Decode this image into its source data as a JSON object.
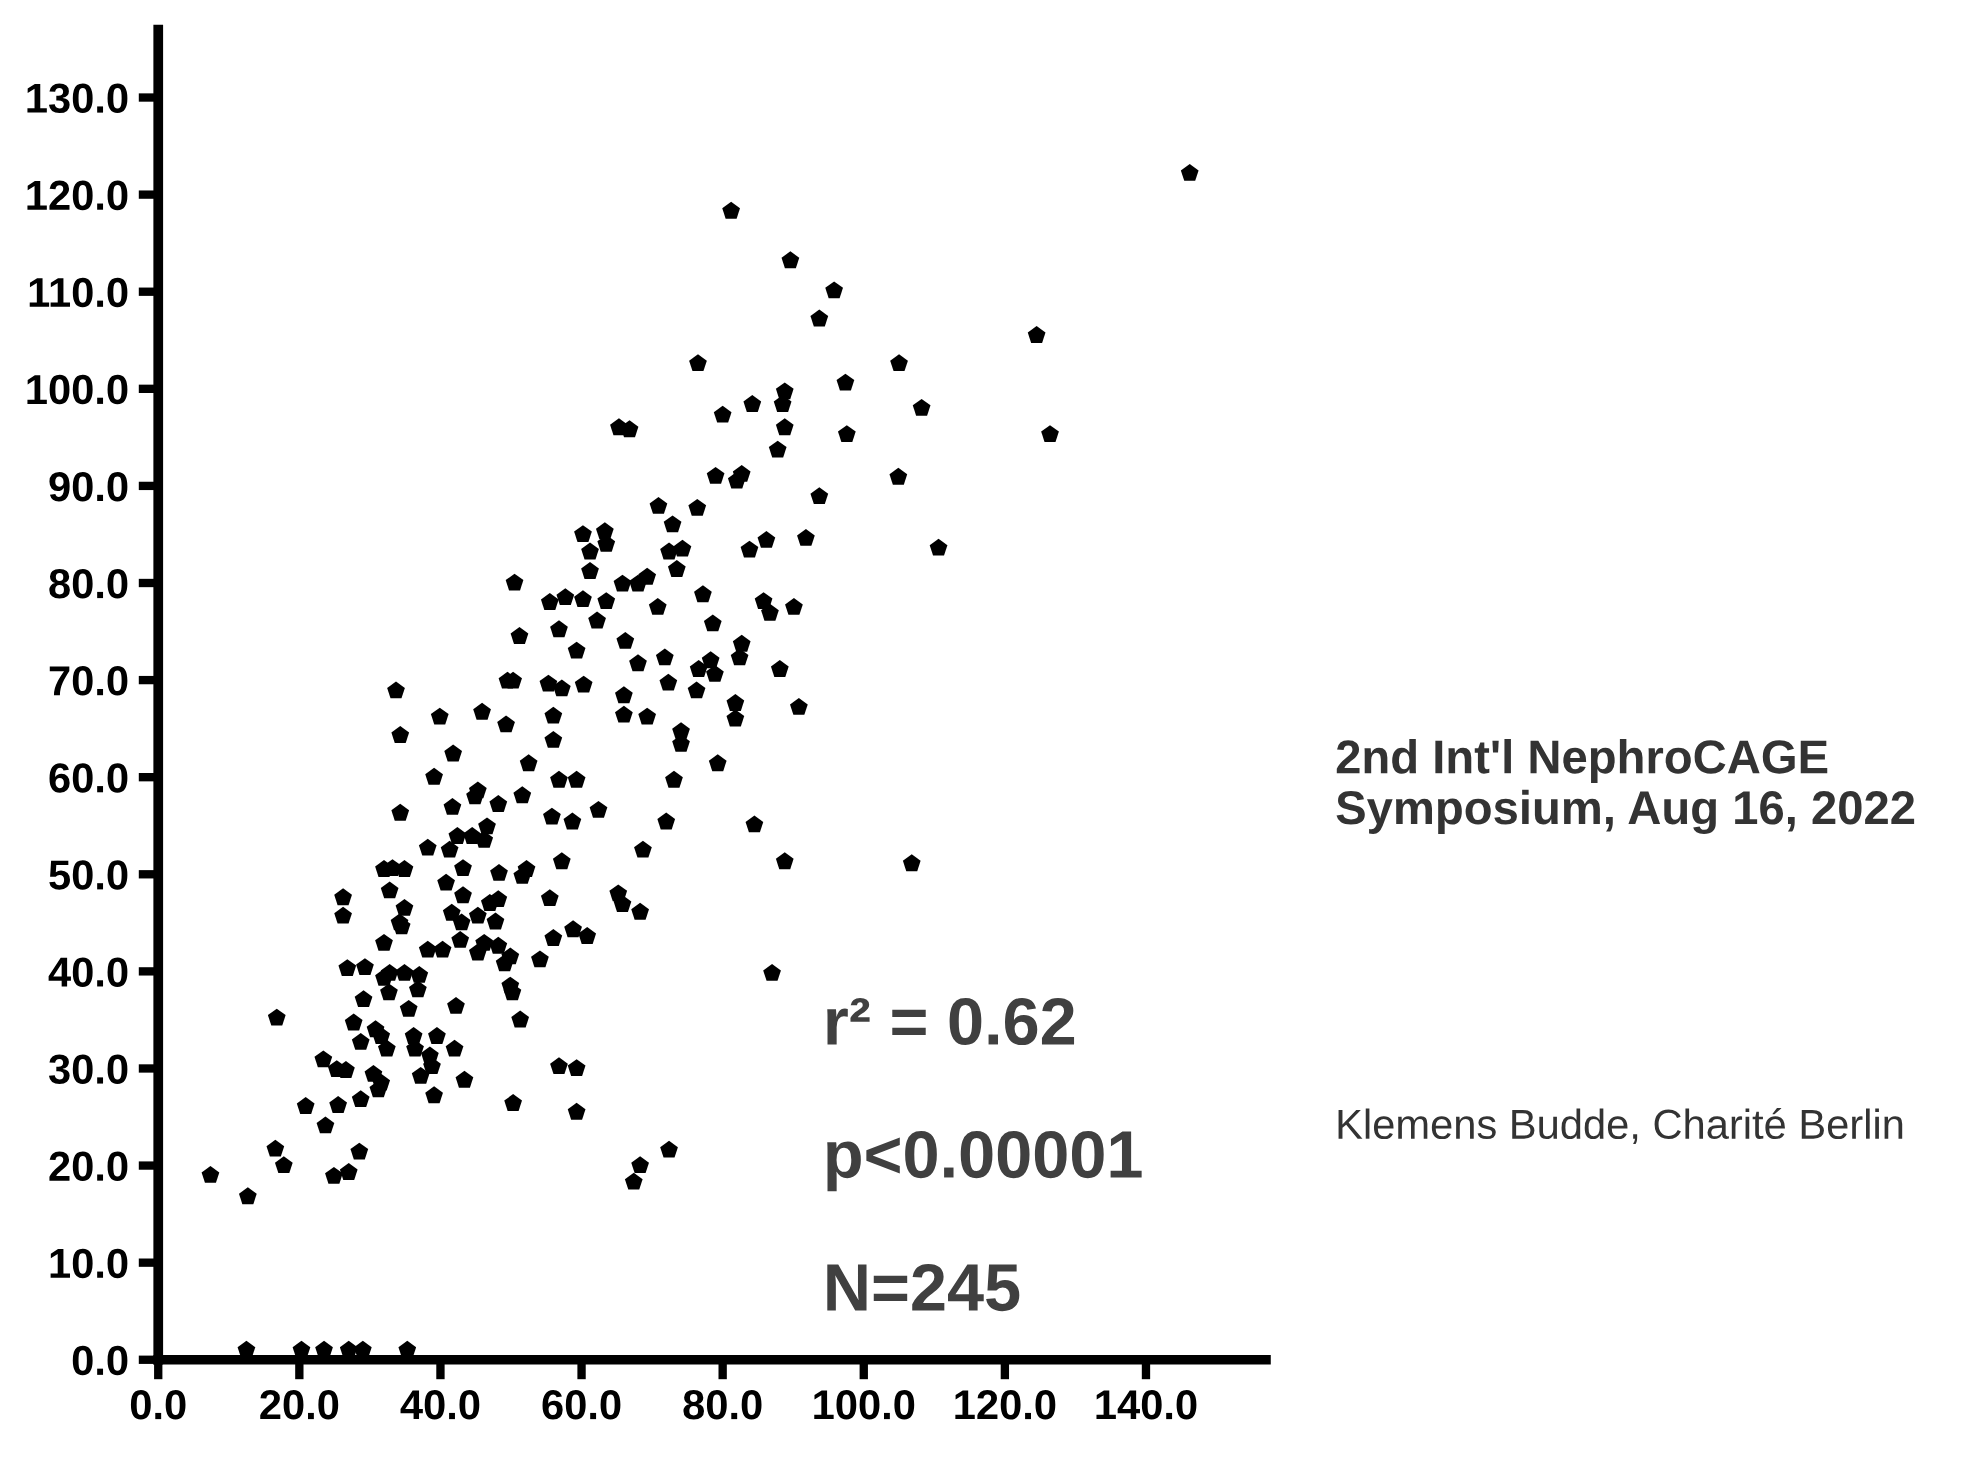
{
  "chart_data": {
    "type": "scatter",
    "annotations": [
      "r² = 0.62",
      "p<0.00001",
      "N=245",
      "2nd Int'l NephroCAGE Symposium, Aug 16, 2022",
      "Klemens Budde, Charité Berlin"
    ],
    "xlim": [
      0,
      157
    ],
    "ylim": [
      0,
      137
    ],
    "xticks": [
      {
        "value": 0,
        "label": "0.0"
      },
      {
        "value": 20,
        "label": "20.0"
      },
      {
        "value": 40,
        "label": "40.0"
      },
      {
        "value": 60,
        "label": "60.0"
      },
      {
        "value": 80,
        "label": "80.0"
      },
      {
        "value": 100,
        "label": "100.0"
      },
      {
        "value": 120,
        "label": "120.0"
      },
      {
        "value": 140,
        "label": "140.0"
      }
    ],
    "yticks": [
      {
        "value": 0,
        "label": "0.0"
      },
      {
        "value": 10,
        "label": "10.0"
      },
      {
        "value": 20,
        "label": "20.0"
      },
      {
        "value": 30,
        "label": "30.0"
      },
      {
        "value": 40,
        "label": "40.0"
      },
      {
        "value": 50,
        "label": "50.0"
      },
      {
        "value": 60,
        "label": "60.0"
      },
      {
        "value": 70,
        "label": "70.0"
      },
      {
        "value": 80,
        "label": "80.0"
      },
      {
        "value": 90,
        "label": "90.0"
      },
      {
        "value": 100,
        "label": "100.0"
      },
      {
        "value": 110,
        "label": "110.0"
      },
      {
        "value": 120,
        "label": "120.0"
      },
      {
        "value": 130,
        "label": "130.0"
      }
    ],
    "grid": false,
    "series": [
      {
        "color": "#000000",
        "x": [
          12.5,
          20.3,
          23.5,
          27,
          29,
          35.3,
          7.4,
          12.7,
          16.6,
          17.8,
          16.8,
          20.9,
          23.7,
          23.4,
          24.9,
          27,
          28.5,
          25.3,
          26.6,
          25.5,
          28.7,
          26.2,
          26.2,
          26.8,
          29.3,
          29.1,
          27.7,
          28.7,
          30.8,
          31.6,
          32.4,
          30.5,
          31.6,
          31.2,
          32,
          32.8,
          32,
          32.7,
          32,
          33.2,
          34.9,
          32.8,
          34.5,
          34.9,
          34.2,
          35.5,
          34.9,
          37,
          36.8,
          36.2,
          36.4,
          38.5,
          38.8,
          37.2,
          39.1,
          39.5,
          38.2,
          40.3,
          42,
          42.2,
          43.4,
          34.3,
          34.3,
          39.1,
          41.8,
          41.7,
          38.2,
          44.9,
          45.3,
          48.2,
          51.6,
          52.5,
          56,
          56.8,
          59.3,
          55.8,
          58.7,
          57.2,
          52.2,
          51.6,
          48.3,
          46.2,
          46.6,
          44.5,
          42.4,
          41.3,
          43.2,
          40.8,
          43.2,
          41.6,
          43,
          42.8,
          45.3,
          47,
          48.2,
          47.8,
          46.2,
          45.3,
          48.2,
          49.9,
          49.1,
          49.9,
          50.2,
          51.3,
          54.1,
          55.5,
          56,
          58.8,
          60.8,
          56.8,
          59.3,
          59.3,
          50.3,
          33.7,
          39.9,
          45.9,
          49.3,
          49.5,
          50.3,
          51.2,
          50.5,
          55.5,
          57.7,
          60.2,
          56.8,
          59.3,
          55.3,
          57.2,
          60.3,
          56,
          60.2,
          61.2,
          61.2,
          81.2,
          89.6,
          95.8,
          93.7,
          146.2,
          124.5,
          126.4,
          76.5,
          105,
          97.4,
          108.2,
          97.6,
          104.9,
          110.6,
          84.2,
          80,
          88.8,
          88.5,
          88.8,
          87.8,
          65.3,
          66.8,
          79,
          82,
          82.7,
          93.7,
          70.9,
          72.9,
          76.4,
          83.8,
          86.2,
          91.8,
          74.3,
          72.4,
          73.5,
          77.2,
          78.6,
          85.8,
          86.7,
          90.1,
          69.3,
          68,
          65.8,
          63.5,
          70.8,
          63.3,
          63.5,
          62.2,
          66.2,
          68,
          71.8,
          72.3,
          76.6,
          76.3,
          78.3,
          78.9,
          82.7,
          82.4,
          88.1,
          66,
          66,
          69.3,
          81.8,
          81.8,
          90.8,
          74.1,
          74.1,
          79.3,
          73.1,
          72,
          68.7,
          84.5,
          88.8,
          106.8,
          65.2,
          65.8,
          68.3,
          87,
          67.4,
          68.3,
          72.4,
          62.4
        ],
        "values": [
          1,
          1,
          1,
          1,
          1,
          1,
          19,
          16.8,
          21.7,
          20,
          35.2,
          26.1,
          24.1,
          30.9,
          18.9,
          19.3,
          21.4,
          29.9,
          29.8,
          26.2,
          26.8,
          47.6,
          45.7,
          40.3,
          40.4,
          37.1,
          34.7,
          32.7,
          34,
          33.3,
          32,
          29.4,
          28.5,
          27.8,
          42.9,
          39.8,
          39.3,
          37.8,
          50.5,
          50.6,
          50.5,
          48.3,
          44.6,
          46.5,
          45,
          36.1,
          39.8,
          39.6,
          38.1,
          33.3,
          32,
          31.3,
          30.2,
          29.2,
          27.2,
          33.3,
          42.2,
          42.2,
          32,
          36.4,
          28.8,
          56.3,
          64.3,
          60,
          62.4,
          56.9,
          52.7,
          58,
          58.6,
          57.2,
          58.1,
          61.4,
          63.8,
          59.7,
          59.7,
          55.9,
          55.4,
          51.3,
          50.5,
          49.8,
          50.1,
          53.5,
          54.9,
          53.9,
          53.9,
          52.5,
          50.6,
          49.1,
          47.8,
          46,
          45,
          43.2,
          45.7,
          47,
          47.4,
          45.1,
          42.9,
          41.9,
          42.6,
          41.5,
          40.8,
          38.5,
          37.8,
          35,
          41.2,
          47.5,
          43.4,
          44.3,
          43.6,
          30.2,
          30,
          25.5,
          26.4,
          68.9,
          66.2,
          66.7,
          65.4,
          69.9,
          69.9,
          74.5,
          80,
          78,
          78.5,
          78.3,
          75.2,
          73,
          69.6,
          69.1,
          69.5,
          66.3,
          85,
          83.2,
          81.2,
          118.3,
          113.2,
          110.1,
          107.2,
          122.2,
          105.5,
          95.3,
          102.6,
          102.6,
          100.6,
          98,
          95.3,
          90.9,
          83.6,
          98.4,
          97.3,
          99.7,
          98.4,
          96,
          93.7,
          96,
          95.8,
          91,
          90.5,
          91.2,
          88.9,
          87.9,
          86,
          87.7,
          83.4,
          84.4,
          84.6,
          83.5,
          83.2,
          81.4,
          78.8,
          75.8,
          78.1,
          76.9,
          77.5,
          80.6,
          79.9,
          79.9,
          78.1,
          77.5,
          85.3,
          84,
          76.1,
          74,
          71.7,
          72.3,
          69.7,
          71.1,
          68.9,
          72,
          70.6,
          73.7,
          72.3,
          71.1,
          68.4,
          66.4,
          66.2,
          67.6,
          66,
          67.2,
          64.7,
          63.4,
          61.4,
          59.7,
          55.4,
          52.5,
          55.1,
          51.3,
          51.1,
          48,
          46.9,
          46.1,
          39.8,
          18.3,
          20,
          21.6,
          56.6
        ]
      }
    ]
  }
}
